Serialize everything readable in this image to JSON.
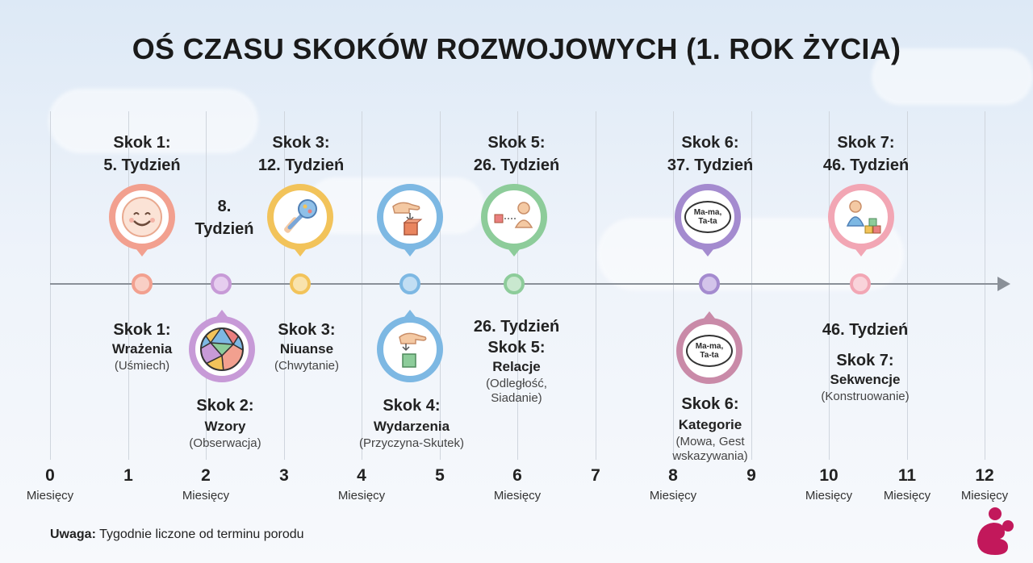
{
  "title": "OŚ CZASU SKOKÓW ROZWOJOWYCH (1. ROK ŻYCIA)",
  "axis": {
    "ticks": [
      "0",
      "1",
      "2",
      "3",
      "4",
      "5",
      "6",
      "7",
      "8",
      "9",
      "10",
      "11",
      "12"
    ],
    "unit_label": "Miesięcy"
  },
  "colors": {
    "leap1": "#f2a08f",
    "leap2": "#c79ad7",
    "leap3": "#f2c35a",
    "leap4": "#7db8e3",
    "leap5": "#8dcc9a",
    "leap6": "#a48bcf",
    "leap6b": "#c98aa8",
    "leap7": "#f2a6b4"
  },
  "above": {
    "leap1": {
      "line1": "Skok 1:",
      "line2": "5. Tydzień",
      "icon": "smiley-face-icon"
    },
    "leap2": {
      "line1": "8.",
      "line2": "Tydzień"
    },
    "leap3": {
      "line1": "Skok 3:",
      "line2": "12. Tydzień",
      "icon": "rattle-icon"
    },
    "leap4": {
      "icon": "hand-dropping-block-icon"
    },
    "leap5": {
      "line1": "Skok 5:",
      "line2": "26. Tydzień",
      "icon": "baby-distance-icon"
    },
    "leap6": {
      "line1": "Skok 6:",
      "line2": "37. Tydzień",
      "icon": "speech-bubble-icon",
      "bubble": "Ma-ma, Ta-ta"
    },
    "leap7": {
      "line1": "Skok 7:",
      "line2": "46. Tydzień",
      "icon": "baby-blocks-icon"
    }
  },
  "below": {
    "leap1": {
      "title": "Skok 1:",
      "name": "Wrażenia",
      "desc": "(Uśmiech)"
    },
    "leap2": {
      "title": "Skok 2:",
      "name": "Wzory",
      "desc": "(Obserwacja)",
      "icon": "pattern-mosaic-icon"
    },
    "leap3": {
      "title": "Skok 3:",
      "name": "Niuanse",
      "desc": "(Chwytanie)"
    },
    "leap4": {
      "title": "Skok 4:",
      "name": "Wydarzenia",
      "desc": "(Przyczyna-Skutek)",
      "icon": "hand-block-icon"
    },
    "leap5": {
      "week": "26. Tydzień",
      "title": "Skok 5:",
      "name": "Relacje",
      "desc1": "(Odległość,",
      "desc2": "Siadanie)"
    },
    "leap6": {
      "title": "Skok 6:",
      "name": "Kategorie",
      "desc1": "(Mowa, Gest",
      "desc2": "wskazywania)",
      "icon": "speech-bubble-icon",
      "bubble": "Ma-ma, Ta-ta"
    },
    "leap7": {
      "week": "46. Tydzień",
      "title": "Skok 7:",
      "name": "Sekwencje",
      "desc": "(Konstruowanie)"
    }
  },
  "note": {
    "bold": "Uwaga:",
    "text": " Tygodnie liczone od terminu porodu"
  },
  "logo": "brand-logo-icon"
}
